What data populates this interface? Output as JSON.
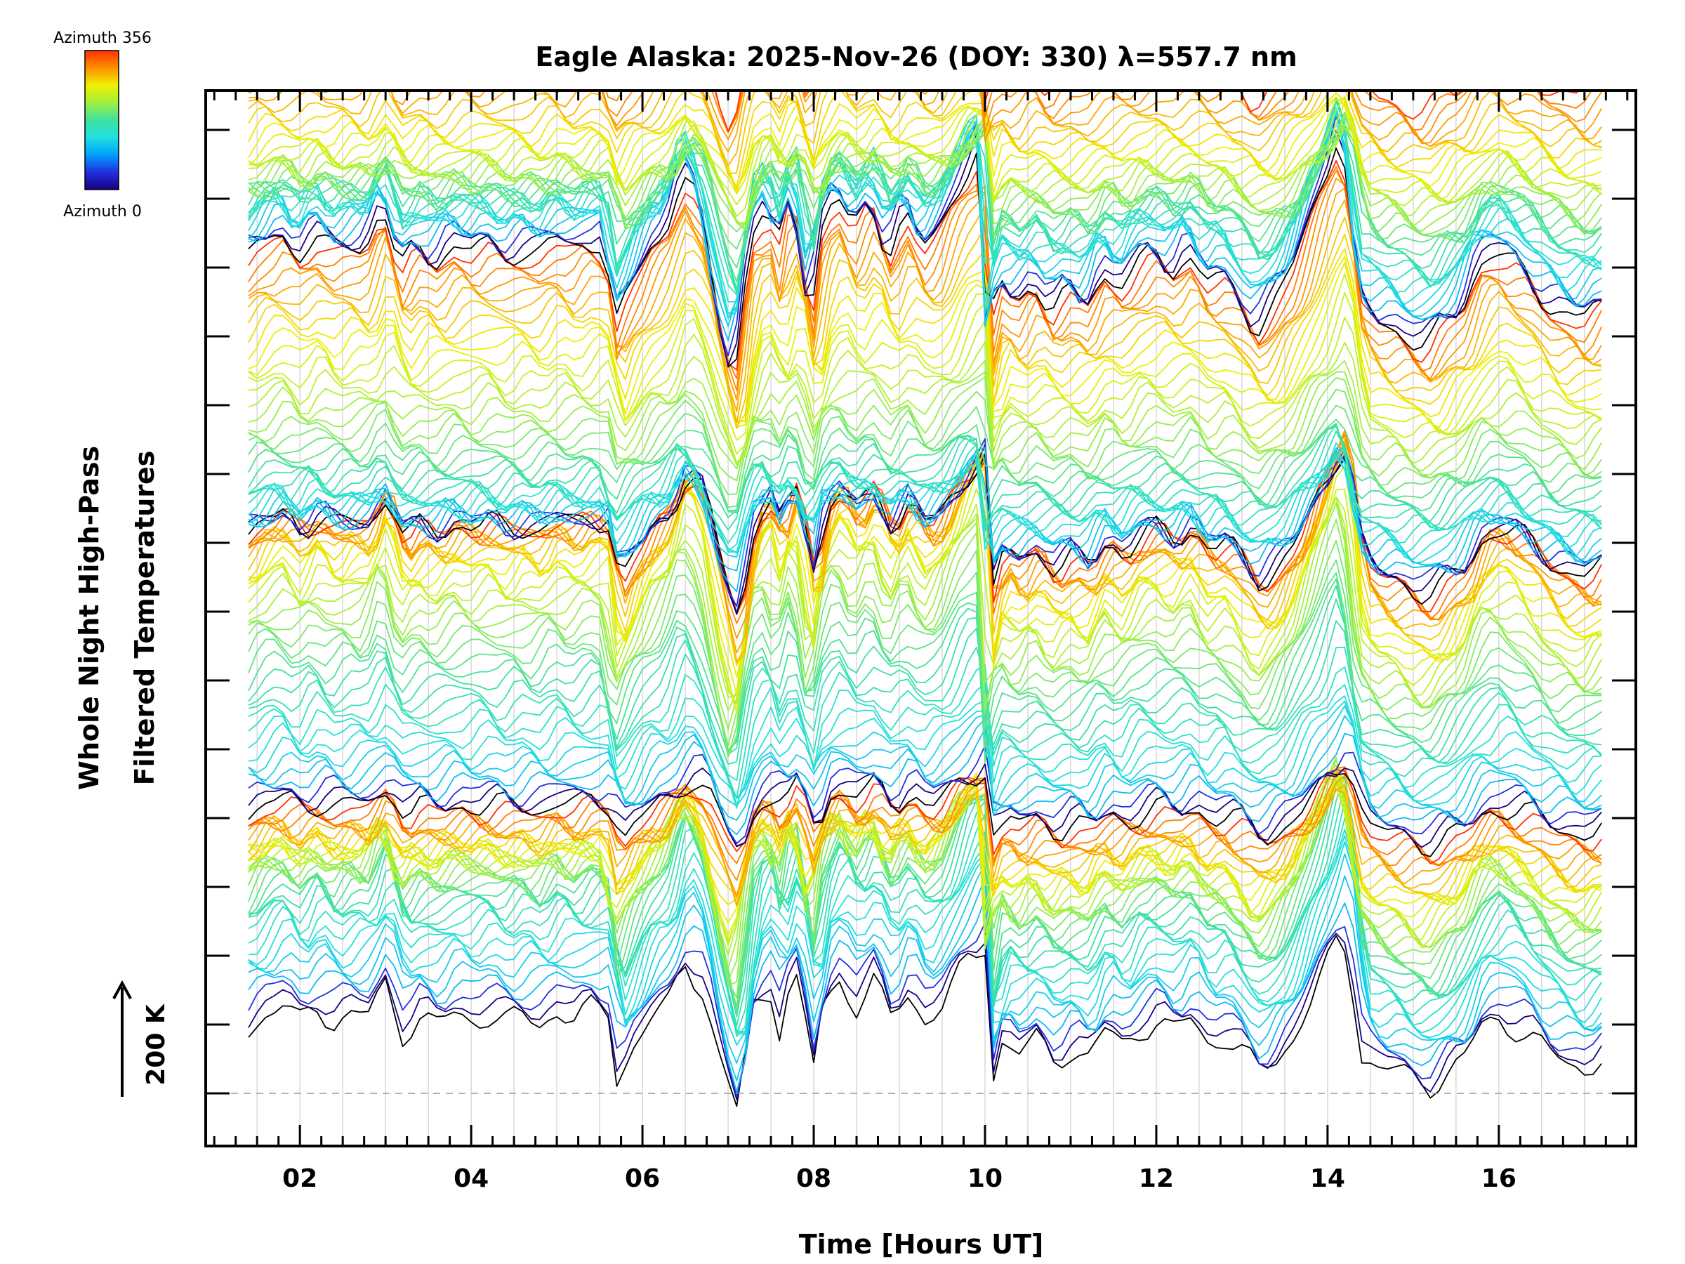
{
  "chart_data": {
    "type": "line",
    "title": "Eagle Alaska: 2025-Nov-26 (DOY: 330) λ=557.7 nm",
    "xlabel": "Time [Hours UT]",
    "ylabel_line1": "Whole Night High-Pass",
    "ylabel_line2": "Filtered Temperatures",
    "xlim": [
      0.9,
      17.6
    ],
    "x_ticks": [
      2,
      4,
      6,
      8,
      10,
      12,
      14,
      16
    ],
    "x_tick_labels": [
      "02",
      "04",
      "06",
      "08",
      "10",
      "12",
      "14",
      "16"
    ],
    "scale_bar_label": "200 K",
    "scale_bar_kelvin": 200,
    "colorbar": {
      "top_label": "Azimuth 356",
      "bottom_label": "Azimuth 0",
      "min": 0,
      "max": 356,
      "colors": [
        "#1a0080",
        "#2030e0",
        "#00a0ff",
        "#20e0e0",
        "#40e0a0",
        "#a0f040",
        "#f0f000",
        "#ff9000",
        "#ff3000"
      ]
    },
    "traces": {
      "count": 144,
      "azimuth_step_deg": 2.5,
      "sectors": 4,
      "sector_start_colors": [
        "#000000",
        "#1a0080",
        "#2030e0"
      ],
      "sector_end_color": "#ff3000",
      "time_start": 1.4,
      "time_end": 17.2,
      "time_step": 0.1,
      "profile_kelvin": [
        [
          1.4,
          150
        ],
        [
          1.6,
          180
        ],
        [
          1.8,
          200
        ],
        [
          2.0,
          160
        ],
        [
          2.2,
          200
        ],
        [
          2.4,
          165
        ],
        [
          2.6,
          180
        ],
        [
          2.8,
          175
        ],
        [
          3.0,
          250
        ],
        [
          3.2,
          140
        ],
        [
          3.4,
          170
        ],
        [
          3.6,
          155
        ],
        [
          3.8,
          180
        ],
        [
          4.0,
          170
        ],
        [
          4.2,
          180
        ],
        [
          4.4,
          160
        ],
        [
          4.6,
          175
        ],
        [
          4.8,
          160
        ],
        [
          5.0,
          190
        ],
        [
          5.2,
          170
        ],
        [
          5.4,
          190
        ],
        [
          5.6,
          185
        ],
        [
          5.7,
          40
        ],
        [
          5.9,
          110
        ],
        [
          6.1,
          170
        ],
        [
          6.3,
          200
        ],
        [
          6.5,
          300
        ],
        [
          6.7,
          240
        ],
        [
          6.9,
          80
        ],
        [
          7.1,
          -40
        ],
        [
          7.3,
          200
        ],
        [
          7.5,
          240
        ],
        [
          7.6,
          150
        ],
        [
          7.7,
          230
        ],
        [
          7.8,
          250
        ],
        [
          8.0,
          60
        ],
        [
          8.1,
          200
        ],
        [
          8.3,
          260
        ],
        [
          8.5,
          200
        ],
        [
          8.7,
          250
        ],
        [
          8.9,
          170
        ],
        [
          9.1,
          230
        ],
        [
          9.3,
          170
        ],
        [
          9.5,
          200
        ],
        [
          9.8,
          300
        ],
        [
          10.0,
          340
        ],
        [
          10.05,
          10
        ],
        [
          10.2,
          120
        ],
        [
          10.4,
          90
        ],
        [
          10.6,
          120
        ],
        [
          10.8,
          80
        ],
        [
          11.0,
          100
        ],
        [
          11.2,
          80
        ],
        [
          11.4,
          140
        ],
        [
          11.6,
          110
        ],
        [
          11.8,
          150
        ],
        [
          12.0,
          160
        ],
        [
          12.2,
          140
        ],
        [
          12.4,
          170
        ],
        [
          12.6,
          120
        ],
        [
          12.8,
          130
        ],
        [
          13.0,
          90
        ],
        [
          13.2,
          50
        ],
        [
          13.4,
          80
        ],
        [
          13.6,
          130
        ],
        [
          13.8,
          210
        ],
        [
          14.0,
          290
        ],
        [
          14.15,
          360
        ],
        [
          14.25,
          300
        ],
        [
          14.4,
          90
        ],
        [
          14.6,
          60
        ],
        [
          14.8,
          50
        ],
        [
          15.0,
          30
        ],
        [
          15.2,
          20
        ],
        [
          15.4,
          50
        ],
        [
          15.6,
          80
        ],
        [
          15.8,
          150
        ],
        [
          16.0,
          170
        ],
        [
          16.2,
          150
        ],
        [
          16.4,
          120
        ],
        [
          16.6,
          90
        ],
        [
          16.8,
          70
        ],
        [
          17.0,
          60
        ],
        [
          17.2,
          80
        ]
      ]
    }
  }
}
